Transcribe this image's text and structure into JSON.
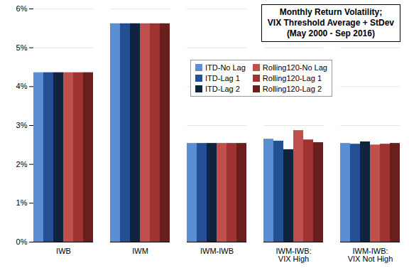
{
  "chart_data": {
    "type": "bar",
    "title": "Monthly Return Volatility;",
    "subtitle": "VIX Threshold Average + StDev (May 2000 - Sep 2016)",
    "categories": [
      "IWB",
      "IWM",
      "IWM-IWB",
      "IWM-IWB: VIX High",
      "IWM-IWB: VIX Not High"
    ],
    "series": [
      {
        "name": "ITD-No Lag",
        "color": "#5b8fd3",
        "values": [
          4.36,
          5.62,
          2.54,
          2.65,
          2.54
        ]
      },
      {
        "name": "ITD-Lag 1",
        "color": "#234f93",
        "values": [
          4.36,
          5.62,
          2.54,
          2.6,
          2.52
        ]
      },
      {
        "name": "ITD-Lag 2",
        "color": "#10243f",
        "values": [
          4.36,
          5.62,
          2.54,
          2.38,
          2.58
        ]
      },
      {
        "name": "Rolling120-No Lag",
        "color": "#c0504d",
        "values": [
          4.36,
          5.62,
          2.54,
          2.87,
          2.5
        ]
      },
      {
        "name": "Rolling120-Lag 1",
        "color": "#9e3431",
        "values": [
          4.36,
          5.62,
          2.54,
          2.63,
          2.52
        ]
      },
      {
        "name": "Rolling120-Lag 2",
        "color": "#6a1f1e",
        "values": [
          4.36,
          5.62,
          2.54,
          2.56,
          2.54
        ]
      }
    ],
    "ylim": [
      0,
      6
    ],
    "yticks": [
      {
        "value": 0,
        "label": "0%"
      },
      {
        "value": 1,
        "label": "1%"
      },
      {
        "value": 2,
        "label": "2%"
      },
      {
        "value": 3,
        "label": "3%"
      },
      {
        "value": 4,
        "label": "4%"
      },
      {
        "value": 5,
        "label": "5%"
      },
      {
        "value": 6,
        "label": "6%"
      }
    ],
    "grid": true,
    "legend": "top-right"
  }
}
